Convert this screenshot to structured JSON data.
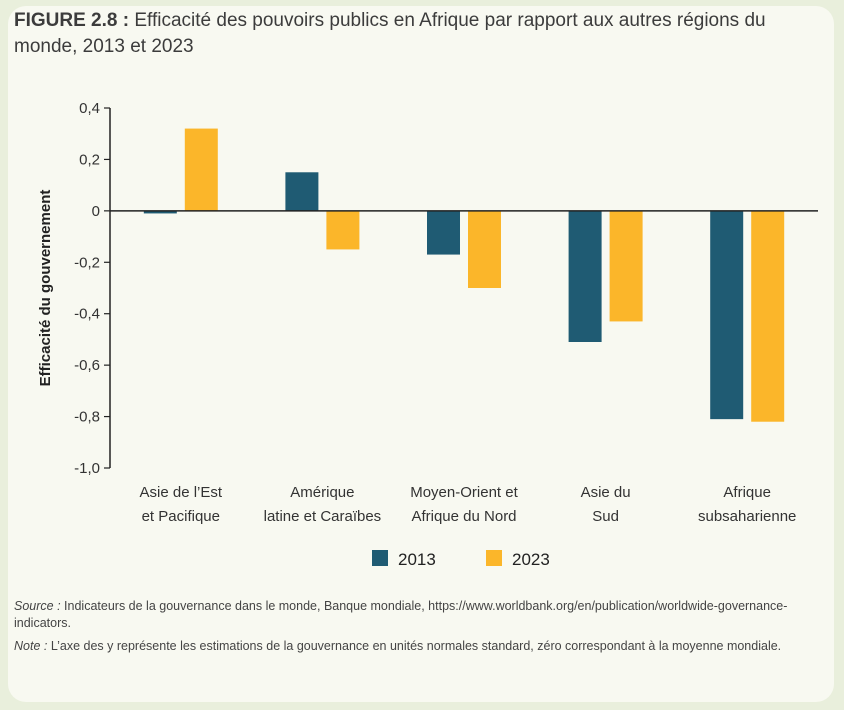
{
  "figure": {
    "label": "FIGURE 2.8 :",
    "title": "Efficacité des pouvoirs publics en Afrique par rapport aux autres régions du monde, 2013 et 2023"
  },
  "notes": {
    "source_label": "Source :",
    "source_text": "Indicateurs de la gouvernance dans le monde, Banque mondiale, https://www.worldbank.org/en/publication/worldwide-governance-indicators.",
    "note_label": "Note :",
    "note_text": "L’axe des y représente les estimations de la gouvernance en unités normales standard, zéro correspondant à la moyenne mondiale."
  },
  "chart_data": {
    "type": "bar",
    "categories": [
      [
        "Asie de l’Est",
        "et Pacifique"
      ],
      [
        "Amérique",
        "latine et Caraïbes"
      ],
      [
        "Moyen-Orient et",
        "Afrique du Nord"
      ],
      [
        "Asie du",
        "Sud"
      ],
      [
        "Afrique",
        "subsaharienne"
      ]
    ],
    "series": [
      {
        "name": "2013",
        "color": "#1f5b73",
        "values": [
          -0.01,
          0.15,
          -0.17,
          -0.51,
          -0.81
        ]
      },
      {
        "name": "2023",
        "color": "#fbb62a",
        "values": [
          0.32,
          -0.15,
          -0.3,
          -0.43,
          -0.82
        ]
      }
    ],
    "ylabel": "Efficacité du gouvernement",
    "ylim": [
      -1.0,
      0.4
    ],
    "yticks": [
      "-1,0",
      "-0,8",
      "-0,6",
      "-0,4",
      "-0,2",
      "0",
      "0,2",
      "0,4"
    ],
    "ytick_values": [
      -1.0,
      -0.8,
      -0.6,
      -0.4,
      -0.2,
      0,
      0.2,
      0.4
    ],
    "grid": false,
    "legend_position": "bottom-center"
  }
}
